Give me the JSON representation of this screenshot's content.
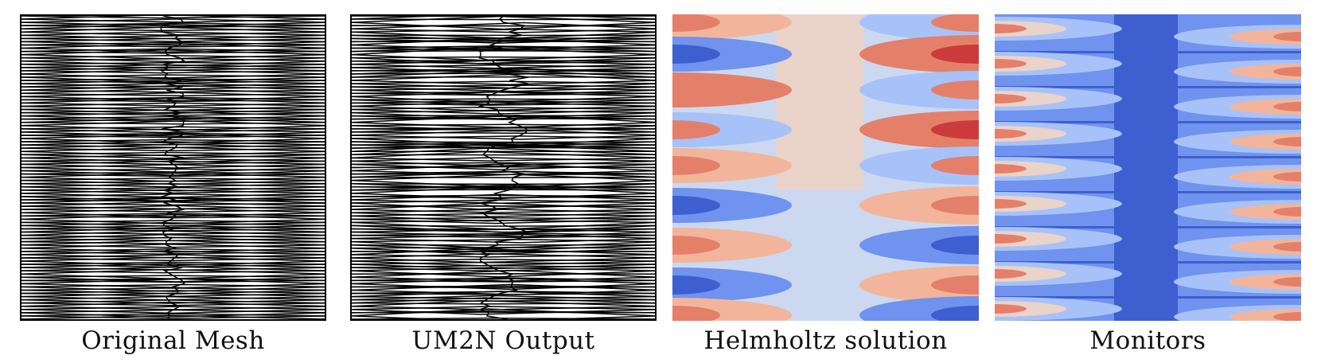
{
  "panels": [
    {
      "id": "original-mesh",
      "caption": "Original Mesh"
    },
    {
      "id": "um2n-output",
      "caption": "UM2N Output"
    },
    {
      "id": "helmholtz-solution",
      "caption": "Helmholtz solution"
    },
    {
      "id": "monitors",
      "caption": "Monitors"
    }
  ],
  "colors": {
    "deep_blue": "#3d5fcf",
    "blue": "#6f93ee",
    "light_blue": "#a7c2f8",
    "pale_blue": "#cbd8f0",
    "neutral": "#ead3c8",
    "light_red": "#f2b59b",
    "red": "#e4806a",
    "deep_red": "#cc3b3b",
    "mesh_line": "#000000"
  }
}
